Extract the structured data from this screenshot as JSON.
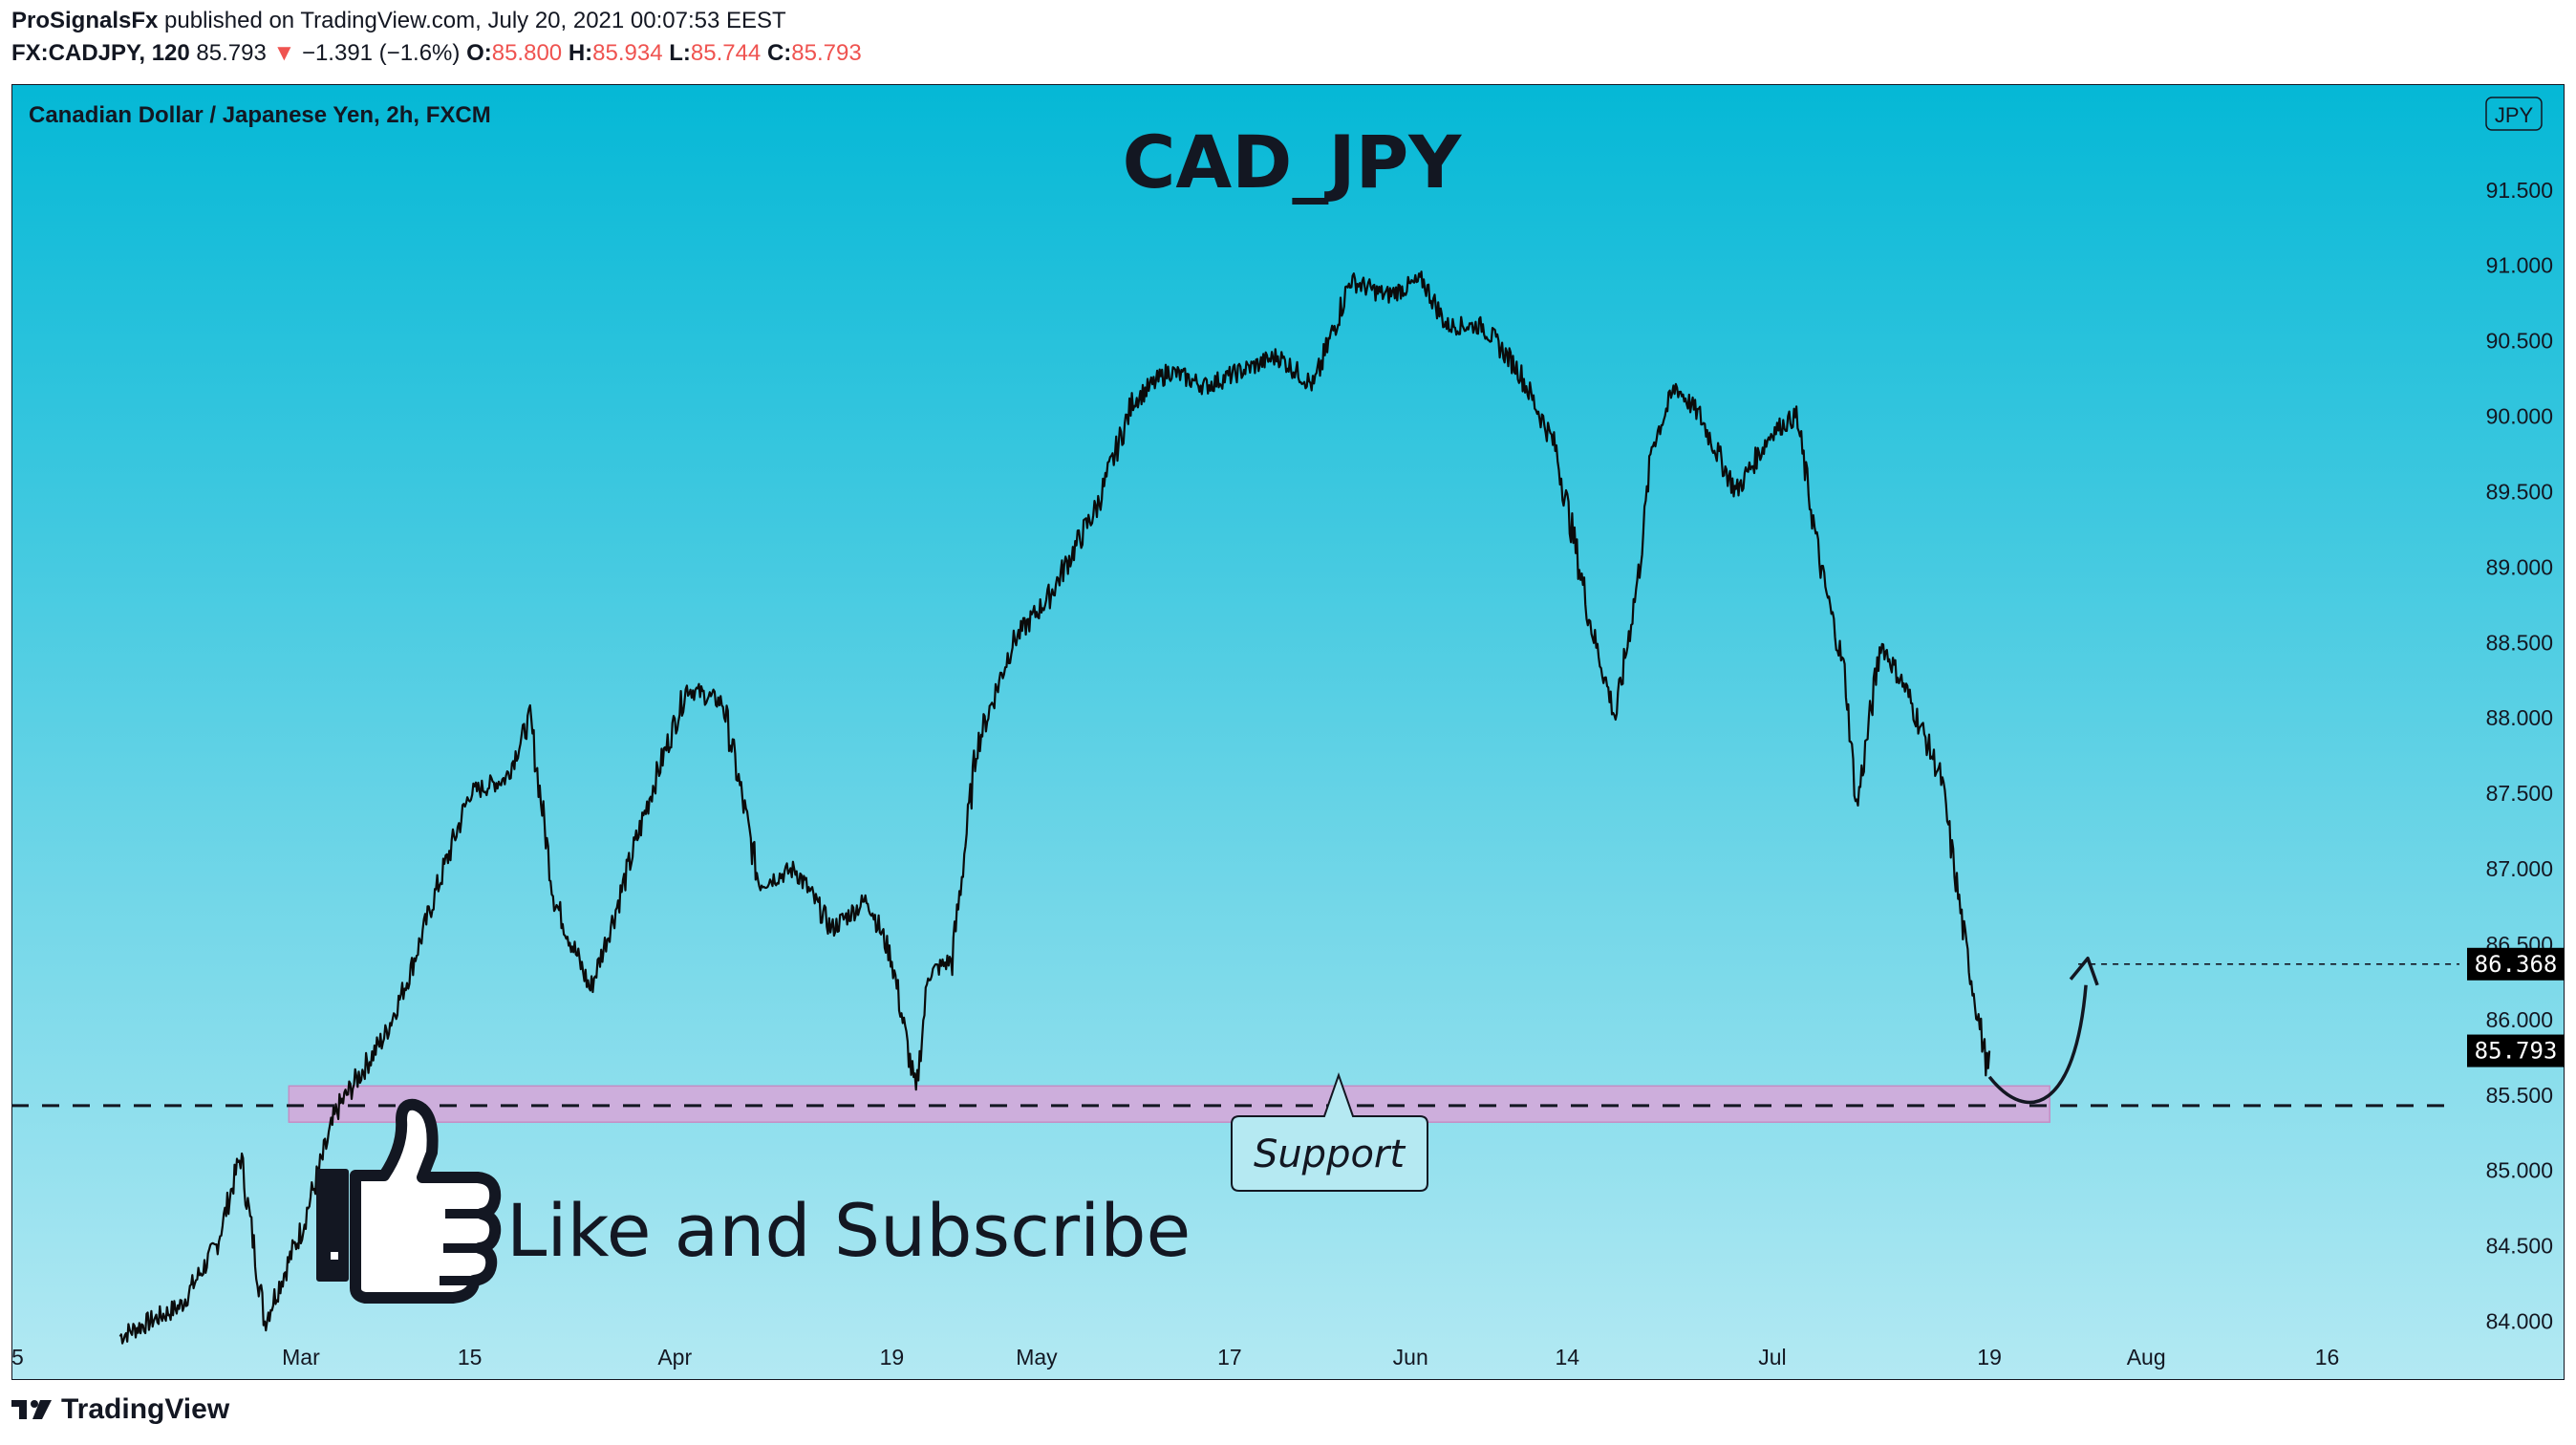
{
  "header": {
    "author": "ProSignalsFx",
    "published": " published on TradingView.com, July 20, 2021 00:07:53 EEST",
    "symbol_line": "FX:CADJPY, 120",
    "last": "85.793",
    "change": "−1.391 (−1.6%)",
    "o_label": "O:",
    "o": "85.800",
    "h_label": "H:",
    "h": "85.934",
    "l_label": "L:",
    "l": "85.744",
    "c_label": "C:",
    "c": "85.793"
  },
  "colors": {
    "down": "#ef5350",
    "band": "#d8a6d8",
    "bg_top": "#05b8d6",
    "bg_bottom": "#b3e9f3"
  },
  "chart_data": {
    "type": "line",
    "instrument": "Canadian Dollar / Japanese Yen, 2h, FXCM",
    "title": "CAD_JPY",
    "currency_badge": "JPY",
    "ylim": [
      83.75,
      92.1
    ],
    "yticks": [
      "91.500",
      "91.000",
      "90.500",
      "90.000",
      "89.500",
      "89.000",
      "88.500",
      "88.000",
      "87.500",
      "87.000",
      "86.500",
      "86.000",
      "85.500",
      "85.000",
      "84.500",
      "84.000"
    ],
    "ytick_values": [
      91.5,
      91.0,
      90.5,
      90.0,
      89.5,
      89.0,
      88.5,
      88.0,
      87.5,
      87.0,
      86.5,
      86.0,
      85.5,
      85.0,
      84.5,
      84.0
    ],
    "xrange": [
      "2021-02-05",
      "2021-08-28"
    ],
    "xticks": [
      {
        "label": "5",
        "date": "2021-02-05"
      },
      {
        "label": "Mar",
        "date": "2021-03-01"
      },
      {
        "label": "15",
        "date": "2021-03-15"
      },
      {
        "label": "Apr",
        "date": "2021-04-01"
      },
      {
        "label": "19",
        "date": "2021-04-19"
      },
      {
        "label": "May",
        "date": "2021-05-01"
      },
      {
        "label": "17",
        "date": "2021-05-17"
      },
      {
        "label": "Jun",
        "date": "2021-06-01"
      },
      {
        "label": "14",
        "date": "2021-06-14"
      },
      {
        "label": "Jul",
        "date": "2021-07-01"
      },
      {
        "label": "19",
        "date": "2021-07-19"
      },
      {
        "label": "Aug",
        "date": "2021-08-01"
      },
      {
        "label": "16",
        "date": "2021-08-16"
      }
    ],
    "series": [
      {
        "x": [
          "2021-02-14",
          "2021-02-19",
          "2021-02-22",
          "2021-02-24",
          "2021-02-26",
          "2021-03-01",
          "2021-03-04",
          "2021-03-08",
          "2021-03-10",
          "2021-03-12",
          "2021-03-15",
          "2021-03-18",
          "2021-03-20",
          "2021-03-22",
          "2021-03-25",
          "2021-03-27",
          "2021-03-30",
          "2021-04-02",
          "2021-04-05",
          "2021-04-08",
          "2021-04-11",
          "2021-04-14",
          "2021-04-17",
          "2021-04-19",
          "2021-04-21",
          "2021-04-22",
          "2021-04-24",
          "2021-04-26",
          "2021-04-29",
          "2021-05-02",
          "2021-05-06",
          "2021-05-09",
          "2021-05-12",
          "2021-05-15",
          "2021-05-18",
          "2021-05-21",
          "2021-05-24",
          "2021-05-27",
          "2021-05-30",
          "2021-06-02",
          "2021-06-04",
          "2021-06-07",
          "2021-06-10",
          "2021-06-13",
          "2021-06-16",
          "2021-06-18",
          "2021-06-20",
          "2021-06-21",
          "2021-06-23",
          "2021-06-25",
          "2021-06-28",
          "2021-07-01",
          "2021-07-03",
          "2021-07-05",
          "2021-07-07",
          "2021-07-08",
          "2021-07-10",
          "2021-07-12",
          "2021-07-15",
          "2021-07-17",
          "2021-07-19"
        ],
        "y": [
          83.9,
          84.1,
          84.5,
          85.1,
          84.0,
          84.6,
          85.4,
          85.9,
          86.3,
          86.8,
          87.5,
          87.6,
          88.0,
          86.8,
          86.2,
          86.7,
          87.5,
          88.2,
          88.1,
          86.9,
          87.0,
          86.6,
          86.8,
          86.4,
          85.5,
          86.3,
          86.4,
          87.8,
          88.5,
          88.8,
          89.4,
          90.1,
          90.3,
          90.2,
          90.3,
          90.4,
          90.2,
          90.9,
          90.8,
          90.9,
          90.6,
          90.6,
          90.3,
          89.8,
          88.6,
          88.0,
          89.0,
          89.8,
          90.2,
          90.0,
          89.5,
          89.9,
          90.0,
          89.0,
          88.3,
          87.4,
          88.5,
          88.2,
          87.6,
          86.5,
          85.6
        ]
      }
    ],
    "current_price": "85.793",
    "current_value": 85.793,
    "target_price": "86.368",
    "target_value": 86.368,
    "support_level": 85.43,
    "support_zone": [
      85.32,
      85.56
    ],
    "support_label": "Support",
    "promo_text": "Like and Subscribe"
  },
  "footer": {
    "brand": "TradingView"
  }
}
